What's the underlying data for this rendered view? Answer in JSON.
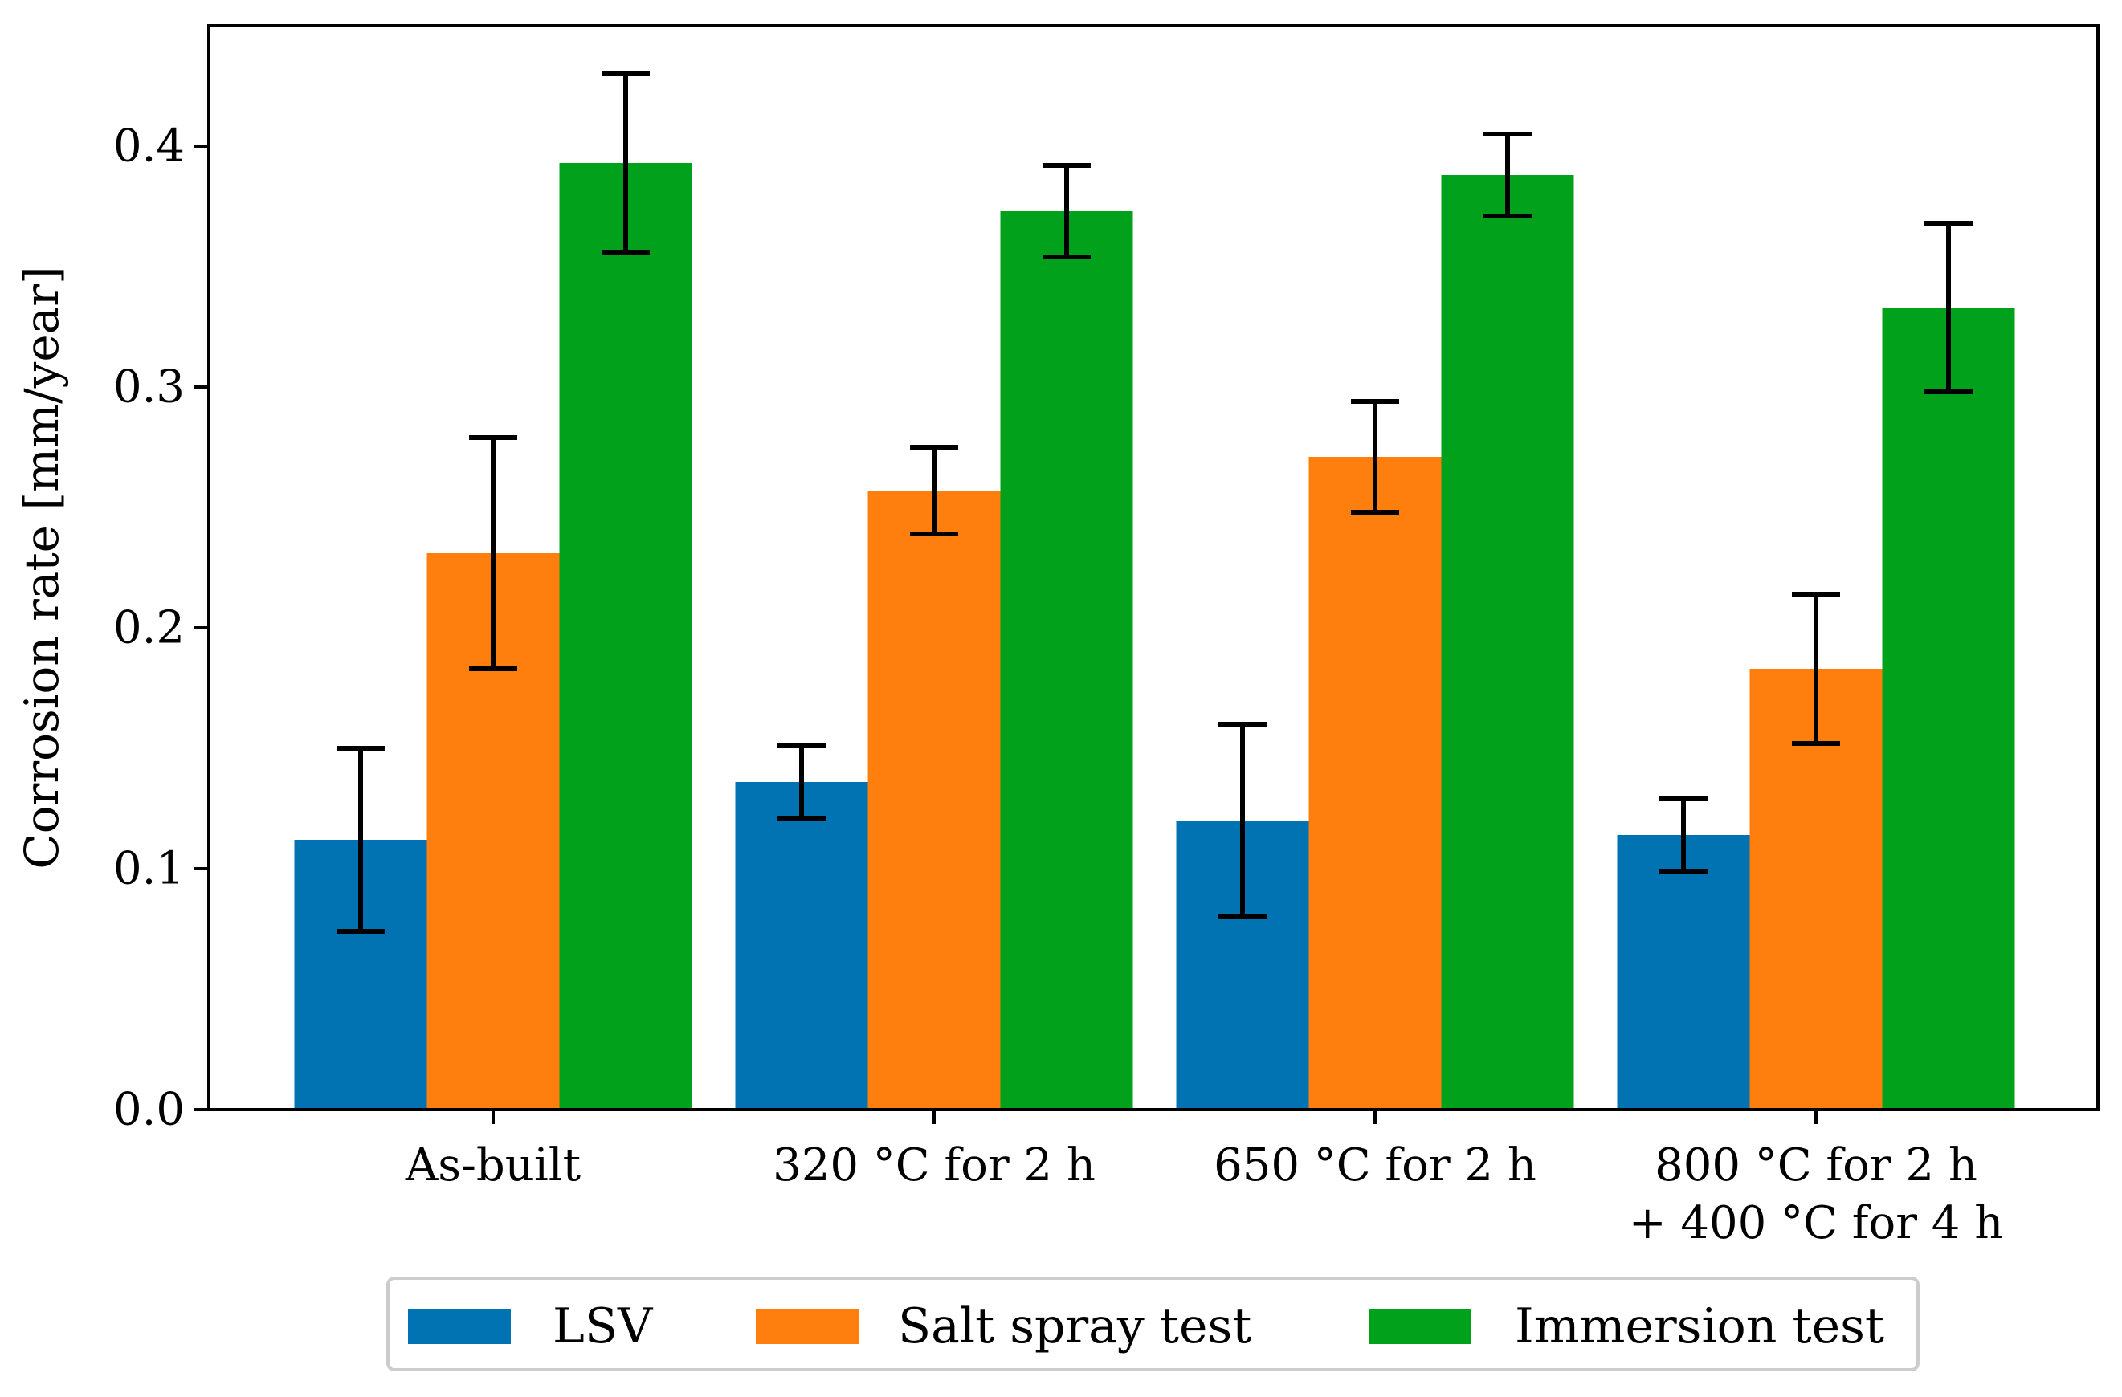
{
  "chart_data": {
    "type": "bar",
    "title": "",
    "xlabel": "",
    "ylabel": "Corrosion rate [mm/year]",
    "ylim": [
      0,
      0.45
    ],
    "yticks": [
      0.0,
      0.1,
      0.2,
      0.3,
      0.4
    ],
    "ytick_labels": [
      "0.0",
      "0.1",
      "0.2",
      "0.3",
      "0.4"
    ],
    "categories": [
      [
        "As-built"
      ],
      [
        "320 °C for 2 h"
      ],
      [
        "650 °C for 2 h"
      ],
      [
        "800 °C for 2 h",
        "+ 400 °C for 4 h"
      ]
    ],
    "series": [
      {
        "name": "LSV",
        "color": "#0173b2",
        "values": [
          0.112,
          0.136,
          0.12,
          0.114
        ],
        "errors": [
          0.038,
          0.015,
          0.04,
          0.015
        ]
      },
      {
        "name": "Salt spray test",
        "color": "#ff7f0e",
        "values": [
          0.231,
          0.257,
          0.271,
          0.183
        ],
        "errors": [
          0.048,
          0.018,
          0.023,
          0.031
        ]
      },
      {
        "name": "Immersion test",
        "color": "#02a11c",
        "values": [
          0.393,
          0.373,
          0.388,
          0.333
        ],
        "errors": [
          0.037,
          0.019,
          0.017,
          0.035
        ]
      }
    ],
    "legend_position": "bottom-center"
  }
}
